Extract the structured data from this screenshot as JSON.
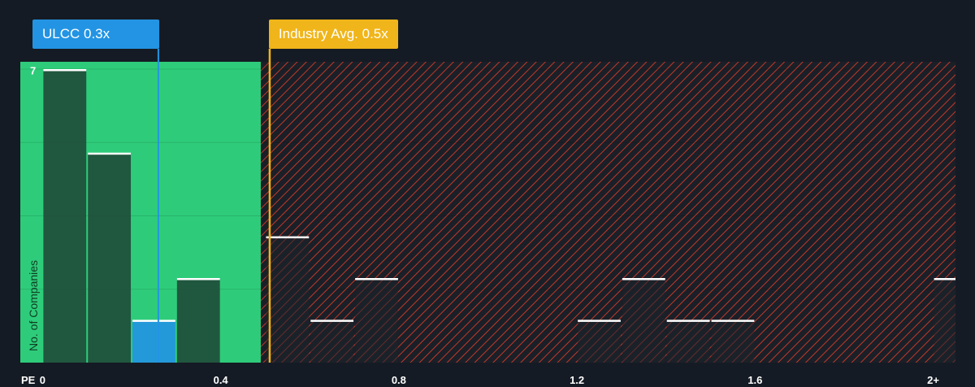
{
  "chart_data": {
    "type": "bar",
    "xlabel": "PE",
    "ylabel": "No. of Companies",
    "x_ticks": [
      "0",
      "0.4",
      "0.8",
      "1.2",
      "1.6",
      "2+"
    ],
    "x_tick_values": [
      0,
      0.4,
      0.8,
      1.2,
      1.6,
      2.0
    ],
    "y_ticks": [
      "7"
    ],
    "xlim": [
      -0.05,
      2.05
    ],
    "ylim": [
      0,
      7.2
    ],
    "bins": [
      {
        "x0": 0.0,
        "x1": 0.1,
        "value": 7
      },
      {
        "x0": 0.1,
        "x1": 0.2,
        "value": 5
      },
      {
        "x0": 0.2,
        "x1": 0.3,
        "value": 1,
        "highlight": true
      },
      {
        "x0": 0.3,
        "x1": 0.4,
        "value": 2
      },
      {
        "x0": 0.5,
        "x1": 0.6,
        "value": 3
      },
      {
        "x0": 0.6,
        "x1": 0.7,
        "value": 1
      },
      {
        "x0": 0.7,
        "x1": 0.8,
        "value": 2
      },
      {
        "x0": 1.2,
        "x1": 1.3,
        "value": 1
      },
      {
        "x0": 1.3,
        "x1": 1.4,
        "value": 2
      },
      {
        "x0": 1.4,
        "x1": 1.5,
        "value": 1
      },
      {
        "x0": 1.5,
        "x1": 1.6,
        "value": 1
      },
      {
        "x0": 2.0,
        "x1": 2.1,
        "value": 2
      }
    ],
    "company": {
      "label": "ULCC 0.3x",
      "value": 0.26
    },
    "industry_avg": {
      "label": "Industry Avg. 0.5x",
      "value": 0.51
    },
    "fair_region_end": 0.49,
    "colors": {
      "background": "#151b24",
      "fair_region": "#2ecc7a",
      "hatched_region": "#c0392b",
      "bar": "#1f4a38",
      "bar_over_hatch": "#1c222b",
      "highlight_bar": "#2394e3",
      "company_callout": "#2394e3",
      "industry_callout": "#f0b51a",
      "bar_top_line": "#ffffff"
    }
  }
}
